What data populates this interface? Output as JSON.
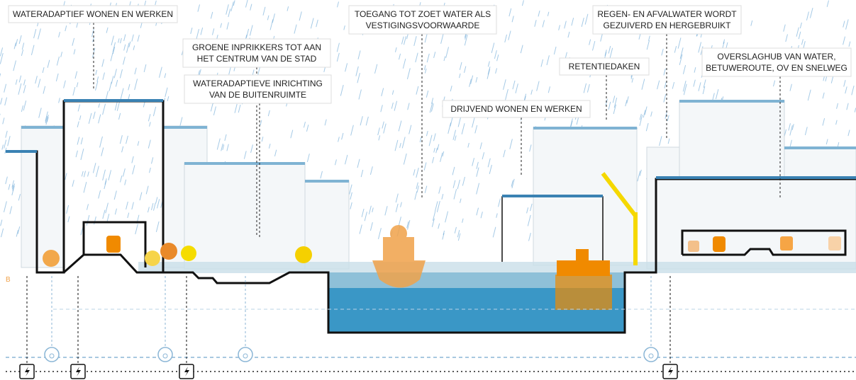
{
  "labels": [
    {
      "lines": [
        "WATERADAPTIEF WONEN EN WERKEN"
      ]
    },
    {
      "lines": [
        "GROENE INPRIKKERS TOT AAN",
        "HET CENTRUM VAN DE STAD"
      ]
    },
    {
      "lines": [
        "WATERADAPTIEVE INRICHTING",
        "VAN DE BUITENRUIMTE"
      ]
    },
    {
      "lines": [
        "TOEGANG TOT ZOET WATER ALS",
        "VESTIGINGSVOORWAARDE"
      ]
    },
    {
      "lines": [
        "REGEN- EN AFVALWATER WORDT",
        "GEZUIVERD EN HERGEBRUIKT"
      ]
    },
    {
      "lines": [
        "RETENTIEDAKEN"
      ]
    },
    {
      "lines": [
        "DRIJVEND WONEN EN WERKEN"
      ]
    },
    {
      "lines": [
        "OVERSLAGHUB VAN WATER,",
        "BETUWEROUTE, OV EN SNELWEG"
      ]
    }
  ],
  "section_marker": "B"
}
